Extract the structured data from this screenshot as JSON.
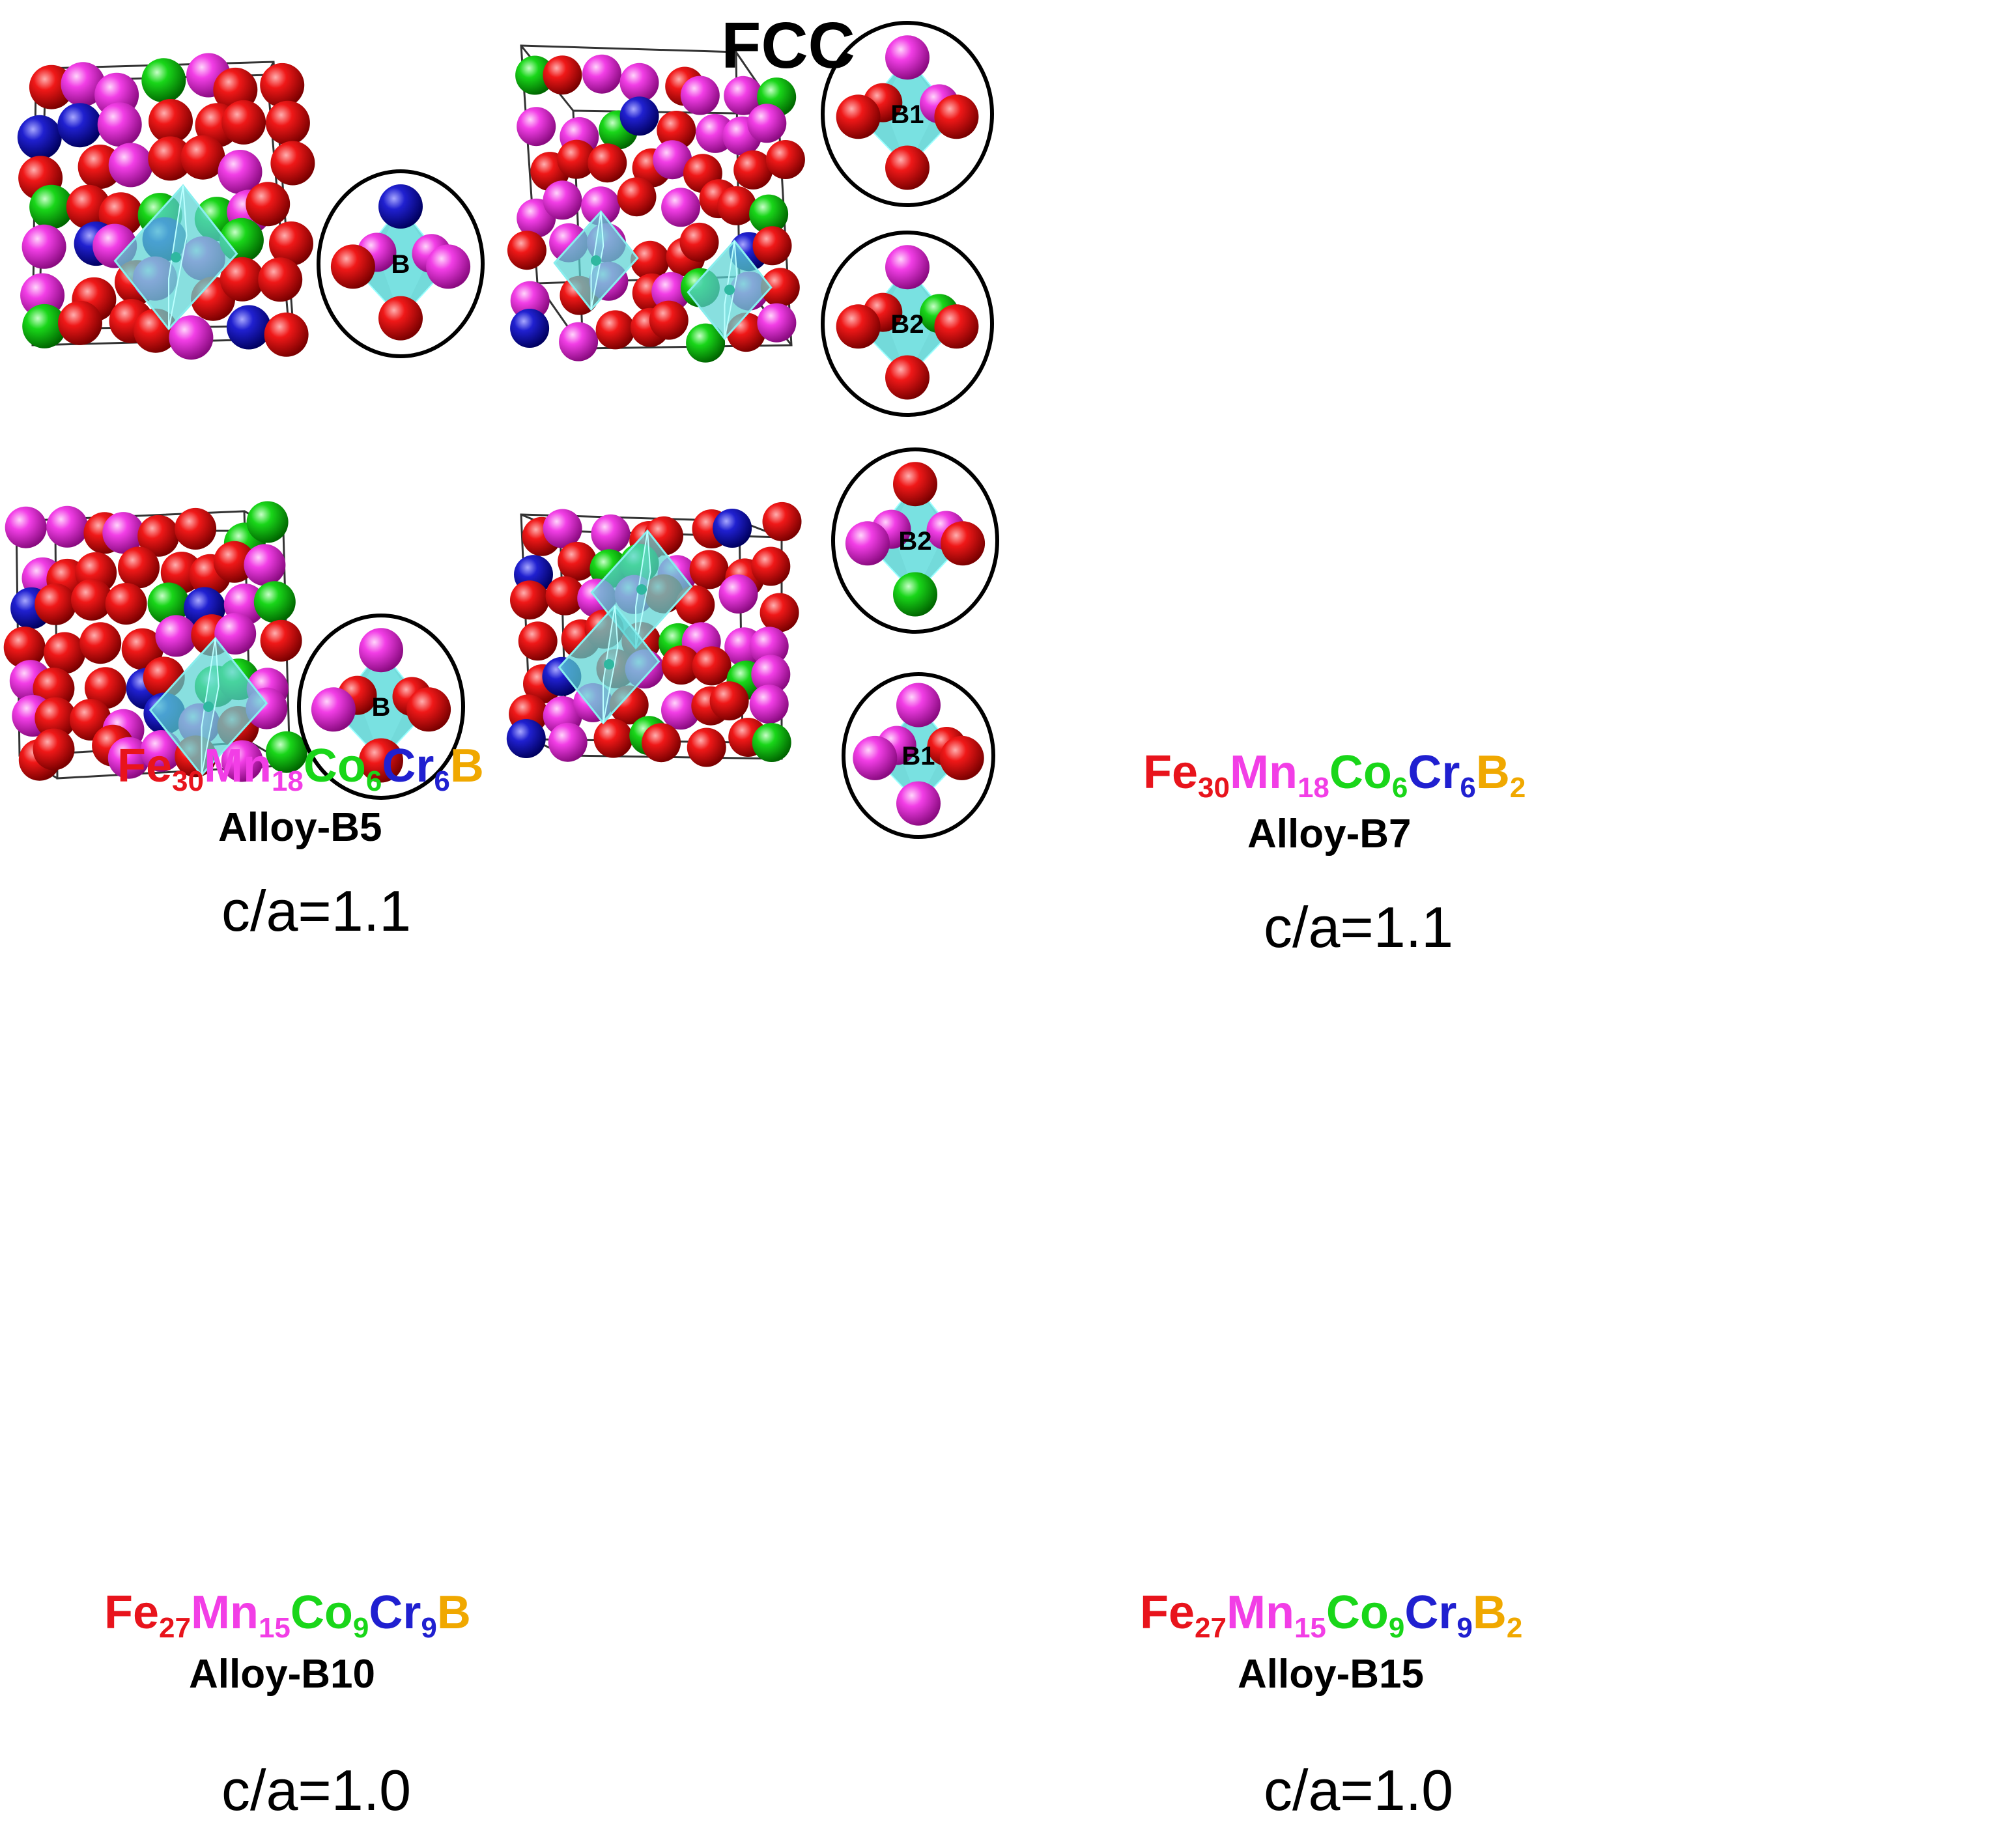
{
  "title": "FCC",
  "colors": {
    "Fe": "#e8141c",
    "Mn": "#f23ee6",
    "Co": "#19d619",
    "Cr": "#2020d0",
    "B": "#f0a800"
  },
  "panels": [
    {
      "id": "b5",
      "formula": [
        {
          "el": "Fe",
          "sub": "30"
        },
        {
          "el": "Mn",
          "sub": "18"
        },
        {
          "el": "Co",
          "sub": "6"
        },
        {
          "el": "Cr",
          "sub": "6"
        },
        {
          "el": "B",
          "sub": ""
        }
      ],
      "alloy": "Alloy-B5",
      "ca": "c/a=1.1"
    },
    {
      "id": "b7",
      "formula": [
        {
          "el": "Fe",
          "sub": "30"
        },
        {
          "el": "Mn",
          "sub": "18"
        },
        {
          "el": "Co",
          "sub": "6"
        },
        {
          "el": "Cr",
          "sub": "6"
        },
        {
          "el": "B",
          "sub": "2"
        }
      ],
      "alloy": "Alloy-B7",
      "ca": "c/a=1.1"
    },
    {
      "id": "b10",
      "formula": [
        {
          "el": "Fe",
          "sub": "27"
        },
        {
          "el": "Mn",
          "sub": "15"
        },
        {
          "el": "Co",
          "sub": "9"
        },
        {
          "el": "Cr",
          "sub": "9"
        },
        {
          "el": "B",
          "sub": ""
        }
      ],
      "alloy": "Alloy-B10",
      "ca": "c/a=1.0"
    },
    {
      "id": "b15",
      "formula": [
        {
          "el": "Fe",
          "sub": "27"
        },
        {
          "el": "Mn",
          "sub": "15"
        },
        {
          "el": "Co",
          "sub": "9"
        },
        {
          "el": "Cr",
          "sub": "9"
        },
        {
          "el": "B",
          "sub": "2"
        }
      ],
      "alloy": "Alloy-B15",
      "ca": "c/a=1.0"
    }
  ],
  "insets": [
    {
      "id": "b5-b",
      "label": "B",
      "atoms": [
        "Cr",
        "Mn",
        "Fe",
        "Mn",
        "Fe",
        "Mn"
      ]
    },
    {
      "id": "b7-b1",
      "label": "B1",
      "atoms": [
        "Mn",
        "Mn",
        "Fe",
        "Fe",
        "Fe",
        "Fe"
      ]
    },
    {
      "id": "b7-b2",
      "label": "B2",
      "atoms": [
        "Mn",
        "Co",
        "Fe",
        "Fe",
        "Fe",
        "Fe"
      ]
    },
    {
      "id": "b10-b",
      "label": "B",
      "atoms": [
        "Mn",
        "Fe",
        "Mn",
        "Fe",
        "Fe",
        "Fe"
      ]
    },
    {
      "id": "b15-b2",
      "label": "B2",
      "atoms": [
        "Fe",
        "Mn",
        "Mn",
        "Fe",
        "Co",
        "Mn"
      ]
    },
    {
      "id": "b15-b1",
      "label": "B1",
      "atoms": [
        "Mn",
        "Fe",
        "Mn",
        "Fe",
        "Mn",
        "Mn"
      ]
    }
  ]
}
